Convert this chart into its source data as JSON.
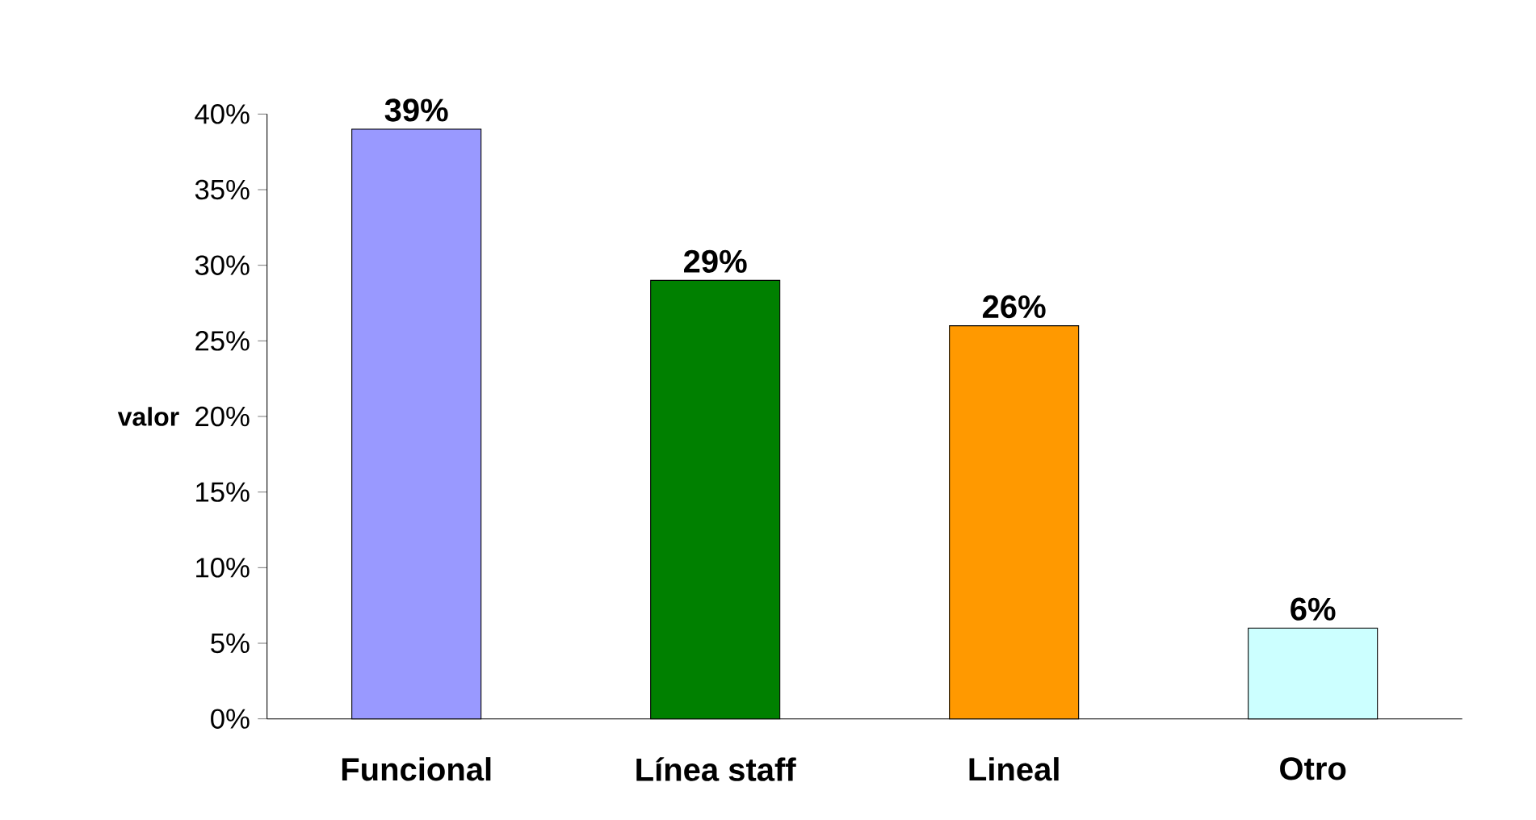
{
  "chart_data": {
    "type": "bar",
    "ylabel": "valor",
    "categories": [
      "Funcional",
      "Línea staff",
      "Lineal",
      "Otro"
    ],
    "values": [
      39,
      29,
      26,
      6
    ],
    "colors": [
      "#9999ff",
      "#008000",
      "#ff9900",
      "#ccffff"
    ],
    "value_labels": [
      "39%",
      "29%",
      "26%",
      "6%"
    ],
    "ylim": [
      0,
      40
    ],
    "yticks": [
      {
        "value": 0,
        "label": "0%"
      },
      {
        "value": 5,
        "label": "5%"
      },
      {
        "value": 10,
        "label": "10%"
      },
      {
        "value": 15,
        "label": "15%"
      },
      {
        "value": 20,
        "label": "20%"
      },
      {
        "value": 25,
        "label": "25%"
      },
      {
        "value": 30,
        "label": "30%"
      },
      {
        "value": 35,
        "label": "35%"
      },
      {
        "value": 40,
        "label": "40%"
      }
    ],
    "grid": false
  }
}
